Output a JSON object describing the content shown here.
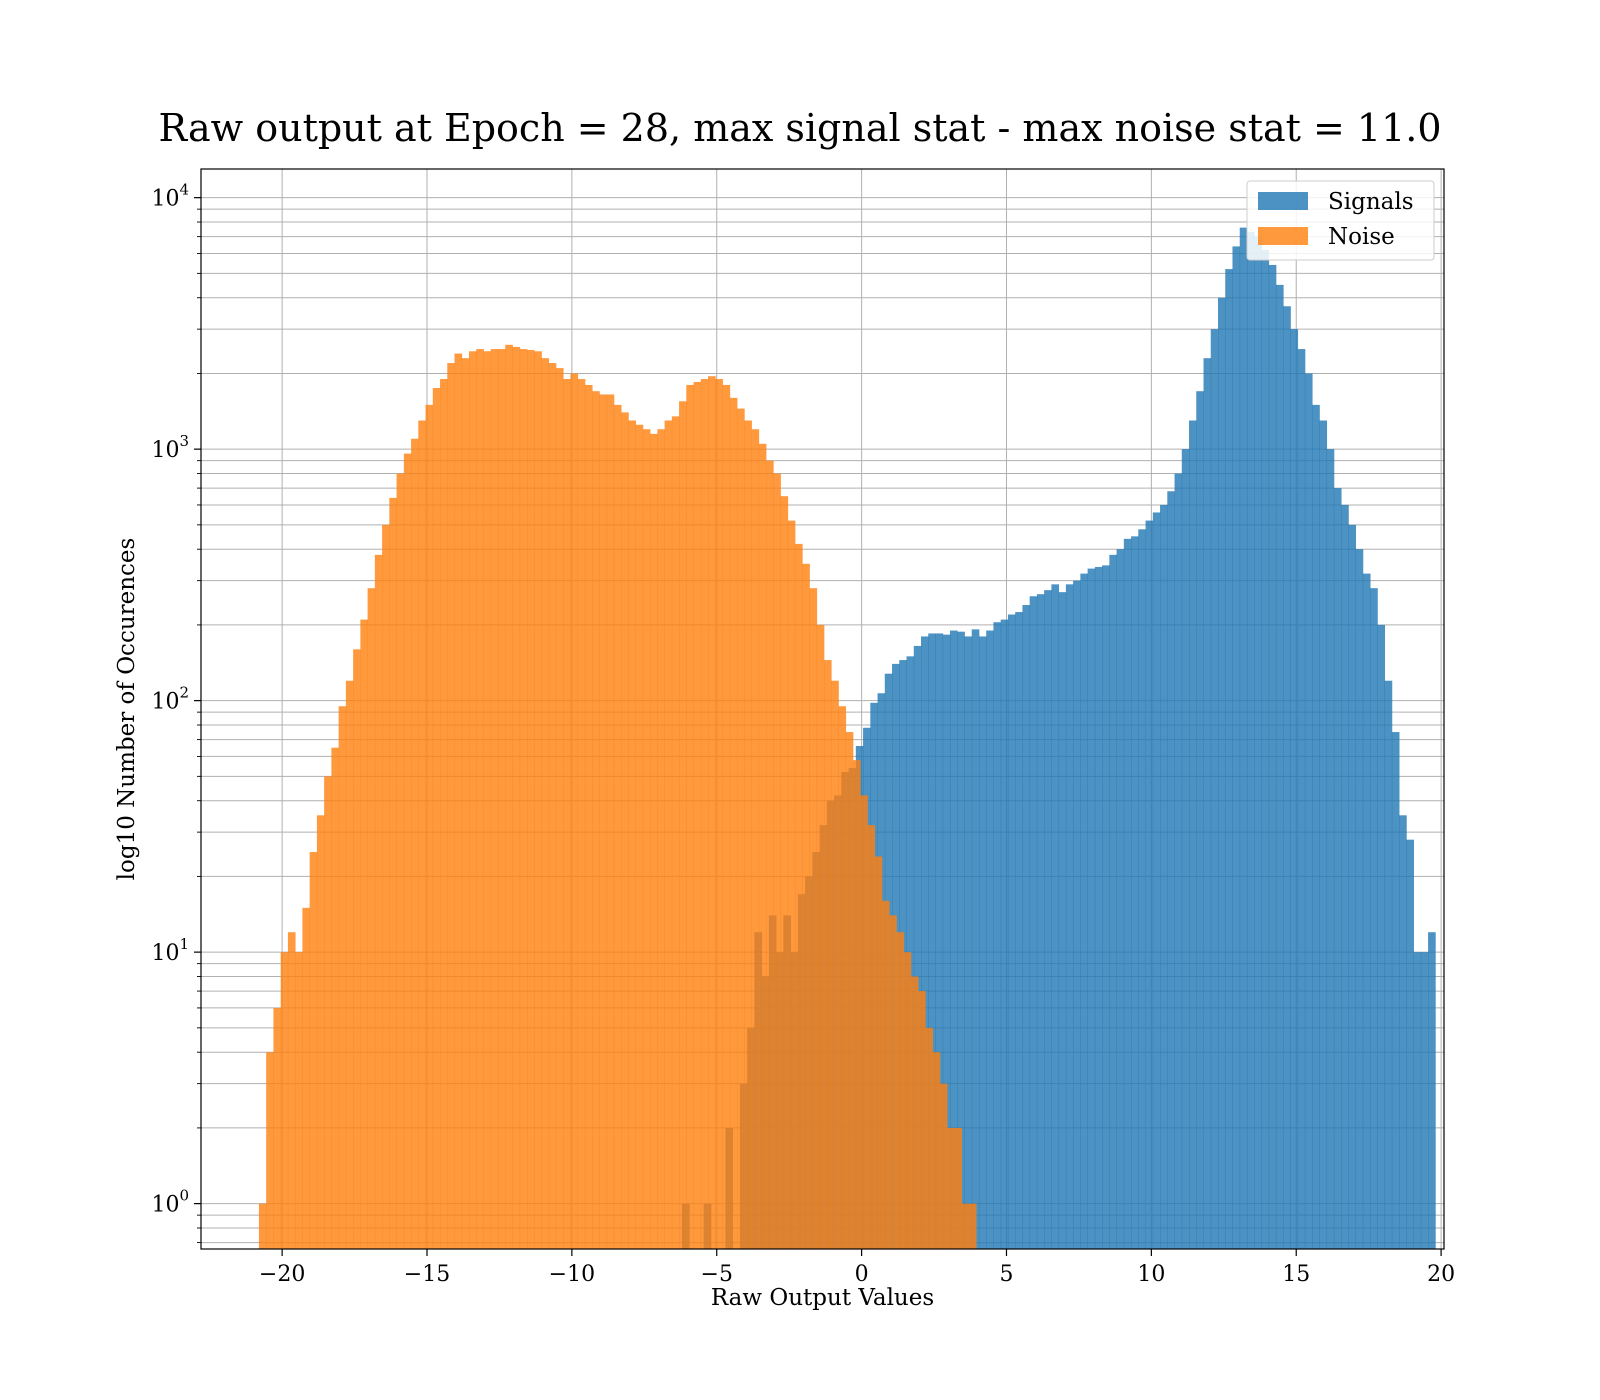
{
  "chart_data": {
    "type": "histogram",
    "title": "Raw output at Epoch = 28, max signal stat - max noise stat = 11.0",
    "xlabel": "Raw Output Values",
    "ylabel": "log10 Number of Occurences",
    "xlim": [
      -22.8,
      20.1
    ],
    "ylim": [
      0.66,
      13000
    ],
    "yscale": "log",
    "grid": true,
    "legend_position": "top-right",
    "x_ticks": [
      -20,
      -15,
      -10,
      -5,
      0,
      5,
      10,
      15,
      20
    ],
    "x_tick_labels": [
      "−20",
      "−15",
      "−10",
      "−5",
      "0",
      "5",
      "10",
      "15",
      "20"
    ],
    "y_ticks": [
      1,
      10,
      100,
      1000,
      10000
    ],
    "y_tick_labels": [
      {
        "base": "10",
        "exp": "0"
      },
      {
        "base": "10",
        "exp": "1"
      },
      {
        "base": "10",
        "exp": "2"
      },
      {
        "base": "10",
        "exp": "3"
      },
      {
        "base": "10",
        "exp": "4"
      }
    ],
    "series": [
      {
        "name": "Signals",
        "color": "#1f77b4",
        "opacity": 0.8,
        "bin_start": -6.2,
        "bin_width": 0.25,
        "counts": [
          1,
          0,
          0,
          1,
          0,
          0,
          2,
          0,
          3,
          5,
          12,
          8,
          14,
          10,
          14,
          10,
          17,
          20,
          25,
          32,
          40,
          42,
          52,
          54,
          66,
          78,
          98,
          107,
          128,
          140,
          145,
          150,
          165,
          180,
          185,
          185,
          183,
          190,
          188,
          180,
          192,
          180,
          190,
          205,
          210,
          220,
          225,
          240,
          260,
          265,
          275,
          290,
          270,
          290,
          300,
          320,
          335,
          340,
          345,
          380,
          400,
          440,
          450,
          480,
          520,
          560,
          600,
          680,
          800,
          1000,
          1300,
          1700,
          2300,
          3000,
          4000,
          5200,
          6400,
          7600,
          7300,
          7000,
          6200,
          5400,
          4500,
          3700,
          3000,
          2500,
          2000,
          1500,
          1300,
          1000,
          700,
          600,
          500,
          400,
          320,
          280,
          200,
          120,
          75,
          35,
          28,
          10,
          10,
          12
        ]
      },
      {
        "name": "Noise",
        "color": "#ff7f0e",
        "opacity": 0.8,
        "bin_start": -20.8,
        "bin_width": 0.25,
        "counts": [
          1,
          4,
          6,
          10,
          12,
          10,
          15,
          25,
          35,
          50,
          65,
          95,
          120,
          160,
          210,
          280,
          380,
          500,
          640,
          800,
          960,
          1100,
          1300,
          1500,
          1750,
          1900,
          2200,
          2400,
          2300,
          2450,
          2500,
          2450,
          2500,
          2500,
          2600,
          2550,
          2500,
          2480,
          2450,
          2300,
          2200,
          2100,
          1900,
          2000,
          1900,
          1800,
          1700,
          1650,
          1650,
          1500,
          1400,
          1300,
          1250,
          1200,
          1150,
          1200,
          1300,
          1350,
          1550,
          1800,
          1850,
          1900,
          1950,
          1900,
          1800,
          1600,
          1450,
          1300,
          1200,
          1050,
          900,
          800,
          650,
          520,
          420,
          350,
          280,
          200,
          145,
          120,
          95,
          75,
          58,
          42,
          32,
          24,
          16,
          14,
          12,
          10,
          8,
          7,
          5,
          4,
          3,
          2,
          2,
          1,
          1
        ]
      }
    ]
  }
}
